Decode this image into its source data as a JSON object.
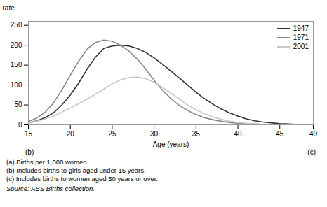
{
  "chart_data": {
    "type": "line",
    "xlabel": "Age (years)",
    "ylabel": "rate",
    "x": [
      15,
      16,
      17,
      18,
      19,
      20,
      21,
      22,
      23,
      24,
      25,
      26,
      27,
      28,
      29,
      30,
      31,
      32,
      33,
      34,
      35,
      36,
      37,
      38,
      39,
      40,
      41,
      42,
      43,
      44,
      45,
      46,
      47,
      48,
      49
    ],
    "series": [
      {
        "name": "1947",
        "color": "#333333",
        "values": [
          5,
          10,
          18,
          30,
          50,
          75,
          105,
          140,
          170,
          192,
          198,
          200,
          198,
          192,
          182,
          168,
          152,
          135,
          118,
          100,
          82,
          66,
          52,
          40,
          30,
          22,
          15,
          10,
          7,
          5,
          3,
          2,
          1,
          1,
          0
        ]
      },
      {
        "name": "1971",
        "color": "#888888",
        "values": [
          8,
          17,
          32,
          55,
          88,
          125,
          160,
          190,
          207,
          213,
          210,
          200,
          185,
          165,
          140,
          112,
          87,
          66,
          49,
          36,
          26,
          18,
          13,
          9,
          6,
          4,
          3,
          2,
          1,
          1,
          0,
          0,
          0,
          0,
          0
        ]
      },
      {
        "name": "2001",
        "color": "#c8c8c8",
        "values": [
          5,
          9,
          15,
          22,
          32,
          42,
          53,
          65,
          77,
          90,
          103,
          113,
          119,
          120,
          116,
          107,
          94,
          80,
          65,
          50,
          38,
          28,
          20,
          14,
          9,
          6,
          4,
          2,
          1,
          1,
          0,
          0,
          0,
          0,
          0
        ]
      }
    ],
    "xlim": [
      15,
      49
    ],
    "ylim": [
      0,
      260
    ],
    "xticks": [
      15,
      20,
      25,
      30,
      35,
      40,
      45,
      49
    ],
    "yticks": [
      0,
      50,
      100,
      150,
      200,
      250
    ],
    "grid": false,
    "legend": "upper right",
    "annotations": [
      "(b)",
      "(c)"
    ],
    "footnotes": [
      "(a) Births per 1,000 women.",
      "(b) Includes births to girls aged under 15 years.",
      "(c) Includes births to women aged 50 years or over."
    ],
    "source": "Source: ABS Births collection."
  }
}
